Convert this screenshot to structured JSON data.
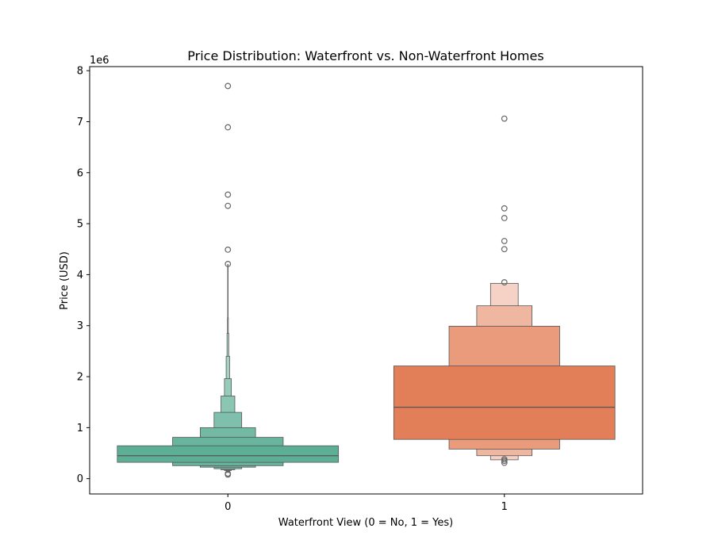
{
  "chart_data": {
    "type": "boxen",
    "title": "Price Distribution: Waterfront vs. Non-Waterfront Homes",
    "xlabel": "Waterfront View (0 = No, 1 = Yes)",
    "ylabel": "Price (USD)",
    "y_offset_label": "1e6",
    "categories": [
      "0",
      "1"
    ],
    "ylim": [
      -0.3,
      8.08
    ],
    "yticks": [
      0,
      1,
      2,
      3,
      4,
      5,
      6,
      7,
      8
    ],
    "grid": false,
    "groups": [
      {
        "category": "0",
        "color": "#66c2a5",
        "median": 0.45,
        "boxes": [
          {
            "lo": 0.32,
            "hi": 0.645
          },
          {
            "lo": 0.255,
            "hi": 0.81
          },
          {
            "lo": 0.225,
            "hi": 1.0
          },
          {
            "lo": 0.195,
            "hi": 1.3
          },
          {
            "lo": 0.175,
            "hi": 1.62
          },
          {
            "lo": 0.16,
            "hi": 1.96
          },
          {
            "lo": 0.148,
            "hi": 2.4
          },
          {
            "lo": 0.14,
            "hi": 2.85
          },
          {
            "lo": 0.13,
            "hi": 3.15
          },
          {
            "lo": 0.12,
            "hi": 4.2
          }
        ],
        "outliers": [
          7.7,
          6.89,
          5.57,
          5.35,
          4.49,
          4.21,
          0.1,
          0.08
        ]
      },
      {
        "category": "1",
        "color": "#fc8d62",
        "median": 1.4,
        "boxes": [
          {
            "lo": 0.77,
            "hi": 2.21
          },
          {
            "lo": 0.58,
            "hi": 2.99
          },
          {
            "lo": 0.45,
            "hi": 3.39
          },
          {
            "lo": 0.37,
            "hi": 3.83
          }
        ],
        "outliers": [
          7.06,
          5.3,
          5.11,
          4.66,
          4.5,
          3.85,
          0.38,
          0.35,
          0.31
        ]
      }
    ]
  }
}
